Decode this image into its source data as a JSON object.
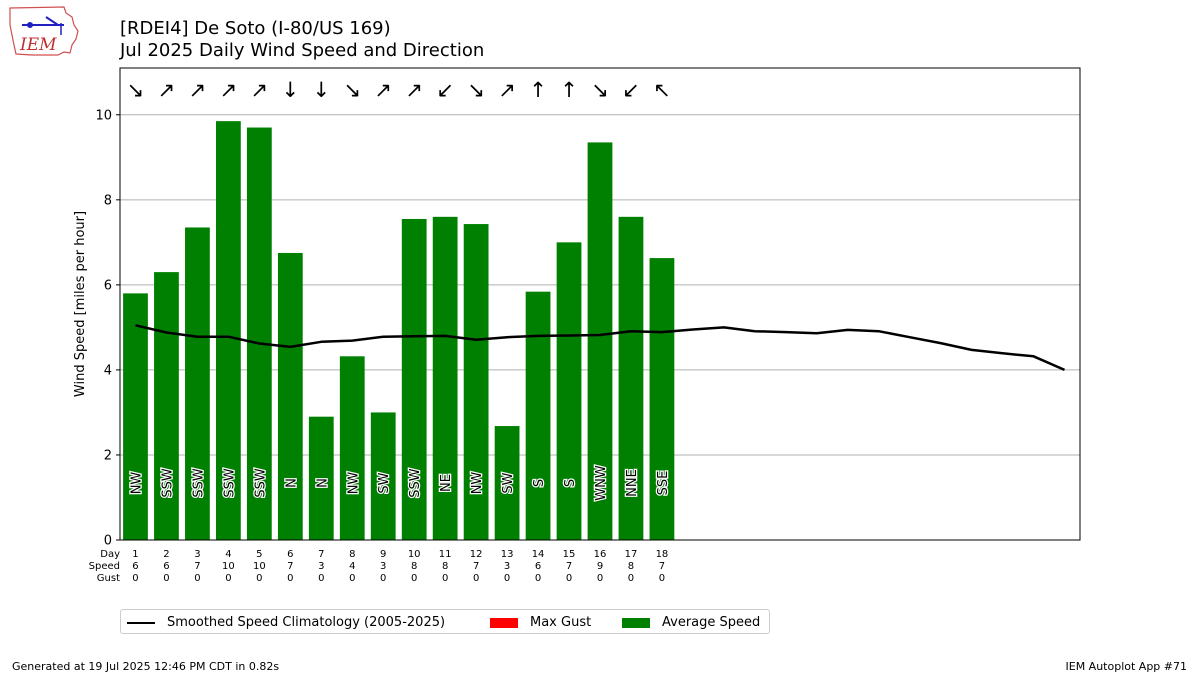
{
  "header": {
    "title_line1": "[RDEI4] De Soto (I-80/US 169)",
    "title_line2": "Jul 2025 Daily Wind Speed and Direction",
    "logo_text": "IEM"
  },
  "footer": {
    "generated": "Generated at 19 Jul 2025 12:46 PM CDT in 0.82s",
    "app": "IEM Autoplot App #71"
  },
  "legend": {
    "climo": "Smoothed Speed Climatology (2005-2025)",
    "gust": "Max Gust",
    "avg": "Average Speed"
  },
  "colors": {
    "bar": "#008000",
    "gust": "#ff0000",
    "climo": "#000000",
    "grid": "#b0b0b0"
  },
  "chart_data": {
    "type": "bar",
    "ylabel": "Wind Speed [miles per hour]",
    "ylim": [
      0,
      11.1
    ],
    "xlim": [
      0.5,
      31.5
    ],
    "yticks": [
      0,
      2,
      4,
      6,
      8,
      10
    ],
    "grid": "horizontal",
    "legend_position": "bottom",
    "row_labels": [
      "Day",
      "Speed",
      "Gust"
    ],
    "days": [
      1,
      2,
      3,
      4,
      5,
      6,
      7,
      8,
      9,
      10,
      11,
      12,
      13,
      14,
      15,
      16,
      17,
      18
    ],
    "avg_speed": [
      5.8,
      6.3,
      7.35,
      9.85,
      9.7,
      6.75,
      2.9,
      4.32,
      3.0,
      7.55,
      7.6,
      7.43,
      2.68,
      5.84,
      7.0,
      9.35,
      7.6,
      6.63
    ],
    "speed_labels": [
      "6",
      "6",
      "7",
      "10",
      "10",
      "7",
      "3",
      "4",
      "3",
      "8",
      "8",
      "7",
      "3",
      "6",
      "7",
      "9",
      "8",
      "7"
    ],
    "gust_labels": [
      "0",
      "0",
      "0",
      "0",
      "0",
      "0",
      "0",
      "0",
      "0",
      "0",
      "0",
      "0",
      "0",
      "0",
      "0",
      "0",
      "0",
      "0"
    ],
    "direction": [
      "NW",
      "SSW",
      "SSW",
      "SSW",
      "SSW",
      "N",
      "N",
      "NW",
      "SW",
      "SSW",
      "NE",
      "NW",
      "SW",
      "S",
      "S",
      "WNW",
      "NNE",
      "SSE"
    ],
    "arrows": [
      "↘",
      "↗",
      "↗",
      "↗",
      "↗",
      "↓",
      "↓",
      "↘",
      "↗",
      "↗",
      "↙",
      "↘",
      "↗",
      "↑",
      "↑",
      "↘",
      "↙",
      "↖"
    ],
    "climatology": {
      "name": "Smoothed Speed Climatology (2005-2025)",
      "x": [
        1,
        2,
        3,
        4,
        5,
        6,
        7,
        8,
        9,
        10,
        11,
        12,
        13,
        14,
        15,
        16,
        17,
        18,
        19,
        20,
        21,
        22,
        23,
        24,
        25,
        26,
        27,
        28,
        29,
        30,
        31
      ],
      "y": [
        5.05,
        4.88,
        4.78,
        4.78,
        4.62,
        4.54,
        4.66,
        4.69,
        4.78,
        4.79,
        4.8,
        4.71,
        4.77,
        4.8,
        4.81,
        4.82,
        4.91,
        4.89,
        4.95,
        5.0,
        4.91,
        4.89,
        4.86,
        4.94,
        4.91,
        4.77,
        4.63,
        4.47,
        4.39,
        4.32,
        4.0
      ]
    }
  }
}
